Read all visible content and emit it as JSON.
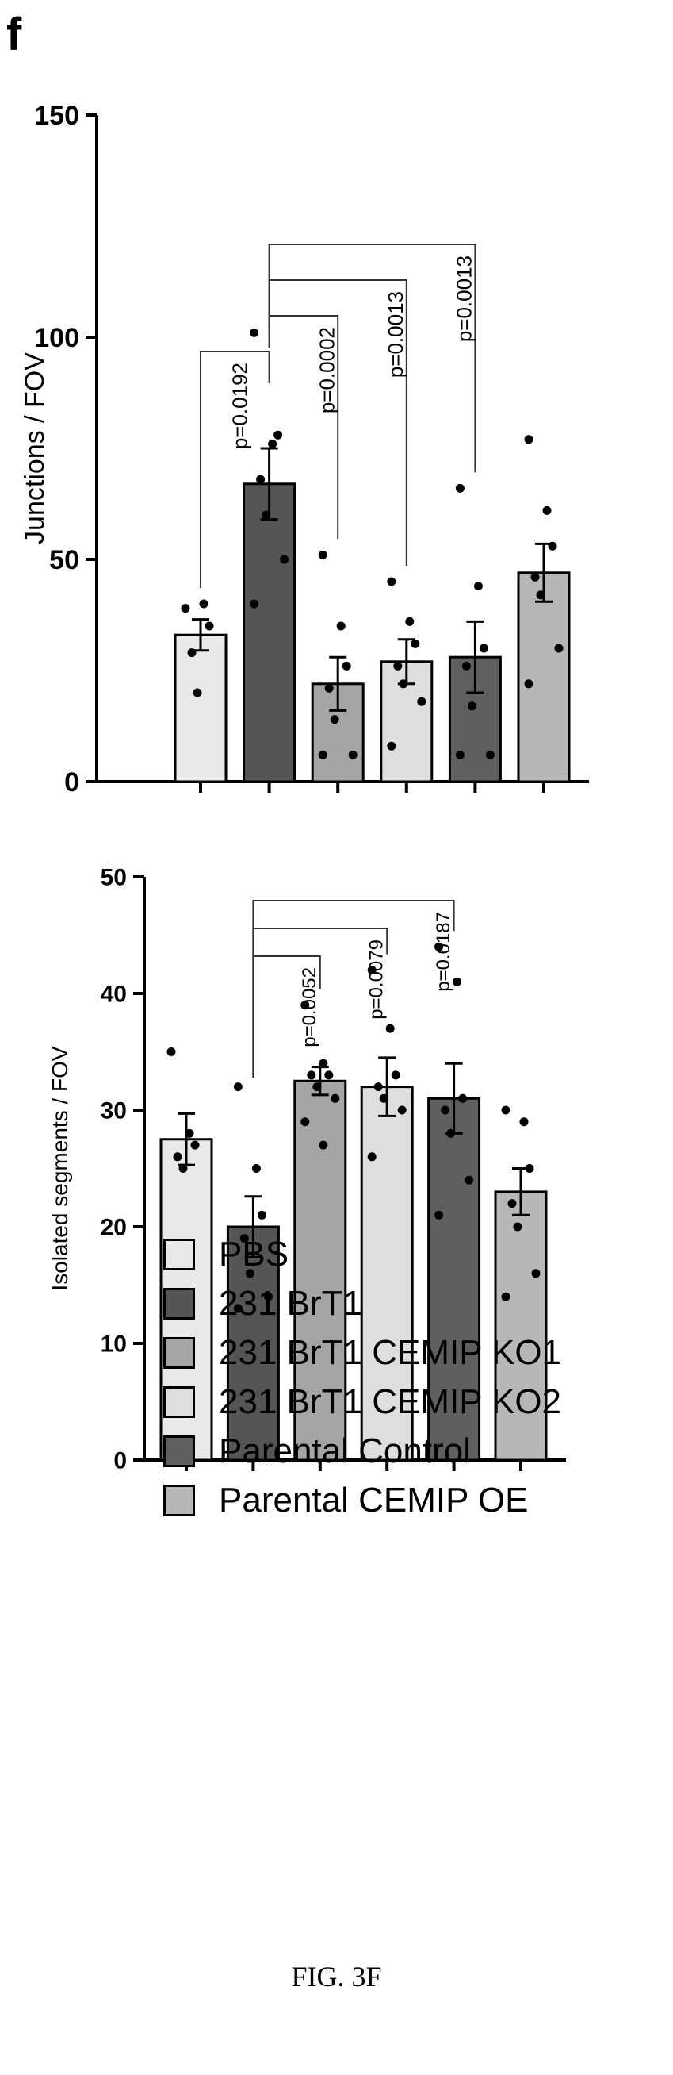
{
  "panel_label": "f",
  "figure_caption": "FIG. 3F",
  "colors": {
    "PBS": "#e9e9e9",
    "231 BrT1": "#555555",
    "231 BrT1 CEMIP KO1": "#a5a5a5",
    "231 BrT1 CEMIP KO2": "#dedede",
    "Parental Control": "#5f5f5f",
    "Parental CEMIP OE": "#b7b7b7"
  },
  "legend": {
    "placement": "bottom",
    "items": [
      "PBS",
      "231 BrT1",
      "231 BrT1 CEMIP KO1",
      "231 BrT1 CEMIP KO2",
      "Parental Control",
      "Parental CEMIP OE"
    ]
  },
  "chart_data": [
    {
      "type": "bar",
      "ylabel": "Junctions / FOV",
      "ylim": [
        0,
        150
      ],
      "yticks": [
        0,
        50,
        100,
        150
      ],
      "categories": [
        "PBS",
        "231 BrT1",
        "231 BrT1 CEMIP KO1",
        "231 BrT1 CEMIP KO2",
        "Parental Control",
        "Parental CEMIP OE"
      ],
      "values": [
        33,
        67,
        22,
        27,
        28,
        47
      ],
      "errors": [
        3.5,
        8,
        6,
        5,
        8,
        6.5
      ],
      "points": [
        [
          39,
          40,
          35,
          29,
          20
        ],
        [
          101,
          76,
          78,
          68,
          60,
          50,
          40
        ],
        [
          51,
          35,
          26,
          21,
          14,
          6,
          6
        ],
        [
          45,
          36,
          31,
          26,
          22,
          18,
          8
        ],
        [
          66,
          44,
          30,
          26,
          17,
          6,
          6
        ],
        [
          77,
          61,
          53,
          46,
          42,
          30,
          22
        ]
      ],
      "comparisons": [
        {
          "from": 1,
          "to": 0,
          "label": "p=0.0192"
        },
        {
          "from": 1,
          "to": 2,
          "label": "p=0.0002"
        },
        {
          "from": 1,
          "to": 3,
          "label": "p=0.0013"
        },
        {
          "from": 1,
          "to": 4,
          "label": "p=0.0013"
        }
      ]
    },
    {
      "type": "bar",
      "ylabel": "Isolated segments / FOV",
      "ylim": [
        0,
        50
      ],
      "yticks": [
        0,
        10,
        20,
        30,
        40,
        50
      ],
      "categories": [
        "PBS",
        "231 BrT1",
        "231 BrT1 CEMIP KO1",
        "231 BrT1 CEMIP KO2",
        "Parental Control",
        "Parental CEMIP OE"
      ],
      "values": [
        27.5,
        20,
        32.5,
        32,
        31,
        23
      ],
      "errors": [
        2.2,
        2.6,
        1.2,
        2.5,
        3,
        2
      ],
      "points": [
        [
          35,
          28,
          27,
          26,
          25
        ],
        [
          32,
          25,
          21,
          19,
          16,
          14,
          13
        ],
        [
          39,
          34,
          33,
          33,
          32,
          31,
          29,
          27
        ],
        [
          42,
          37,
          33,
          32,
          31,
          30,
          26
        ],
        [
          44,
          41,
          31,
          30,
          28,
          24,
          21
        ],
        [
          30,
          29,
          25,
          22,
          20,
          16,
          14
        ]
      ],
      "comparisons": [
        {
          "from": 1,
          "to": 2,
          "label": "p=0.0052"
        },
        {
          "from": 1,
          "to": 3,
          "label": "p=0.0079"
        },
        {
          "from": 1,
          "to": 4,
          "label": "p=0.0187"
        }
      ]
    }
  ]
}
